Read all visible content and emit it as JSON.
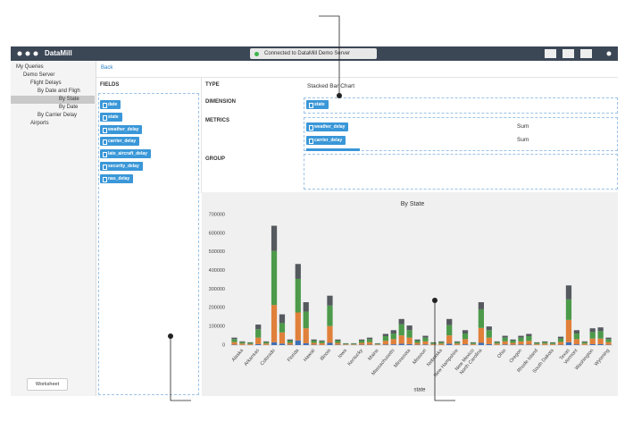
{
  "window": {
    "title": "DataMill",
    "status": "Connected to DataMill Demo Server"
  },
  "sidebar": {
    "tree": [
      "My Queries",
      "Demo Server",
      "Flight Delays",
      "By Date and Fligh",
      "By State",
      "By Date",
      "By Carrier Delay",
      "Airports"
    ],
    "worksheet_button": "Worksheet"
  },
  "fields": {
    "back": "Back",
    "heading": "FIELDS",
    "items": [
      "date",
      "state",
      "weather_delay",
      "carrier_delay",
      "late_aircraft_delay",
      "security_delay",
      "nas_delay"
    ]
  },
  "config": {
    "type_label": "TYPE",
    "type_value": "Stacked Bar Chart",
    "dimension_label": "DIMENSION",
    "dimension_value": "state",
    "metrics_label": "METRICS",
    "metrics": [
      {
        "field": "weather_delay",
        "agg": "Sum"
      },
      {
        "field": "carrier_delay",
        "agg": "Sum"
      }
    ],
    "group_label": "GROUP"
  },
  "chart_data": {
    "type": "stacked-bar",
    "title": "By State",
    "x_label": "state",
    "categories": [
      null,
      "Alaska",
      null,
      "Arkansas",
      null,
      "Colorado",
      null,
      null,
      "Florida",
      null,
      "Hawaii",
      null,
      "Illinois",
      null,
      "Iowa",
      null,
      "Kentucky",
      null,
      "Maine",
      null,
      "Massachusetts",
      null,
      "Minnesota",
      null,
      "Missouri",
      null,
      "Nebraska",
      null,
      "New Hampshire",
      null,
      "New Mexico",
      "North Carolina",
      null,
      null,
      "Ohio",
      null,
      "Oregon",
      null,
      "Rhode Island",
      null,
      "South Dakota",
      null,
      "Texas",
      "Vermont",
      null,
      "Washington",
      null,
      "Wyoming"
    ],
    "series": [
      {
        "color": "#3e6fb8",
        "values": [
          2000,
          1000,
          1000,
          5000,
          1000,
          15000,
          8000,
          2000,
          25000,
          10000,
          2000,
          1000,
          12000,
          2000,
          1000,
          1000,
          2000,
          2000,
          1000,
          3000,
          4000,
          7000,
          5000,
          2000,
          3000,
          1000,
          1000,
          7000,
          1000,
          4000,
          1000,
          12000,
          5000,
          1000,
          3000,
          2000,
          3000,
          3000,
          1000,
          1000,
          1000,
          2000,
          15000,
          4000,
          1000,
          5000,
          5000,
          2000
        ]
      },
      {
        "color": "#e0803a",
        "values": [
          14000,
          7000,
          5000,
          35000,
          7000,
          200000,
          60000,
          10000,
          150000,
          80000,
          10000,
          9000,
          90000,
          10000,
          3000,
          3000,
          10000,
          14000,
          3000,
          20000,
          28000,
          45000,
          35000,
          10000,
          17000,
          5000,
          7000,
          45000,
          7000,
          28000,
          5000,
          80000,
          35000,
          7000,
          17000,
          10000,
          17000,
          20000,
          5000,
          7000,
          5000,
          15000,
          120000,
          28000,
          7000,
          30000,
          30000,
          14000
        ]
      },
      {
        "color": "#4c9a4a",
        "values": [
          16000,
          8000,
          6000,
          45000,
          8000,
          290000,
          50000,
          12000,
          180000,
          90000,
          12000,
          10000,
          110000,
          12000,
          4000,
          4000,
          12000,
          16000,
          4000,
          25000,
          30000,
          60000,
          40000,
          12000,
          20000,
          6000,
          8000,
          55000,
          8000,
          30000,
          6000,
          100000,
          40000,
          8000,
          20000,
          12000,
          20000,
          25000,
          6000,
          8000,
          6000,
          18000,
          110000,
          30000,
          8000,
          35000,
          40000,
          16000
        ]
      },
      {
        "color": "#555a5f",
        "values": [
          8000,
          4000,
          3000,
          25000,
          4000,
          135000,
          47000,
          6000,
          80000,
          50000,
          6000,
          5000,
          53000,
          6000,
          2000,
          2000,
          6000,
          8000,
          2000,
          12000,
          18000,
          28000,
          25000,
          6000,
          10000,
          3000,
          4000,
          33000,
          4000,
          18000,
          3000,
          38000,
          20000,
          4000,
          10000,
          6000,
          10000,
          12000,
          3000,
          4000,
          3000,
          10000,
          75000,
          18000,
          4000,
          20000,
          20000,
          8000
        ]
      }
    ],
    "ylim": [
      0,
      700000
    ],
    "yticks": [
      0,
      100000,
      200000,
      300000,
      400000,
      500000,
      600000,
      700000
    ],
    "grid": false
  }
}
